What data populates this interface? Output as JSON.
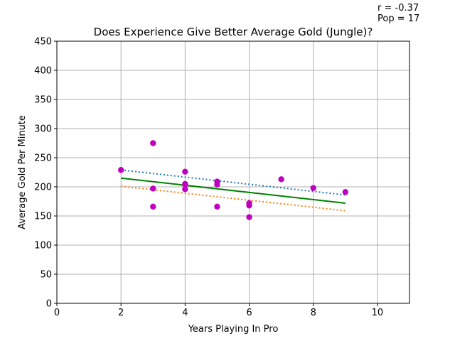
{
  "chart_data": {
    "type": "scatter",
    "title": "Does Experience Give Better Average Gold (Jungle)?",
    "xlabel": "Years Playing In Pro",
    "ylabel": "Average Gold Per Minute",
    "xlim": [
      0,
      11
    ],
    "ylim": [
      0,
      450
    ],
    "xticks": [
      0,
      2,
      4,
      6,
      8,
      10
    ],
    "yticks": [
      0,
      50,
      100,
      150,
      200,
      250,
      300,
      350,
      400,
      450
    ],
    "grid": true,
    "annotation": {
      "r": "r = -0.37",
      "pop": "Pop = 17"
    },
    "points": {
      "color": "#c000c0",
      "x": [
        2,
        3,
        3,
        3,
        4,
        4,
        4,
        4,
        5,
        5,
        5,
        6,
        6,
        6,
        7,
        8,
        9
      ],
      "y": [
        229,
        275,
        197,
        166,
        226,
        205,
        196,
        204,
        209,
        204,
        166,
        172,
        168,
        148,
        213,
        198,
        191
      ]
    },
    "lines": [
      {
        "color": "#1f77b4",
        "style": "dotted",
        "x": [
          2,
          9
        ],
        "y": [
          229,
          186
        ]
      },
      {
        "color": "#008000",
        "style": "solid",
        "x": [
          2,
          9
        ],
        "y": [
          215,
          172
        ]
      },
      {
        "color": "#ff7f0e",
        "style": "dotted",
        "x": [
          2,
          9
        ],
        "y": [
          201,
          159
        ]
      }
    ]
  }
}
